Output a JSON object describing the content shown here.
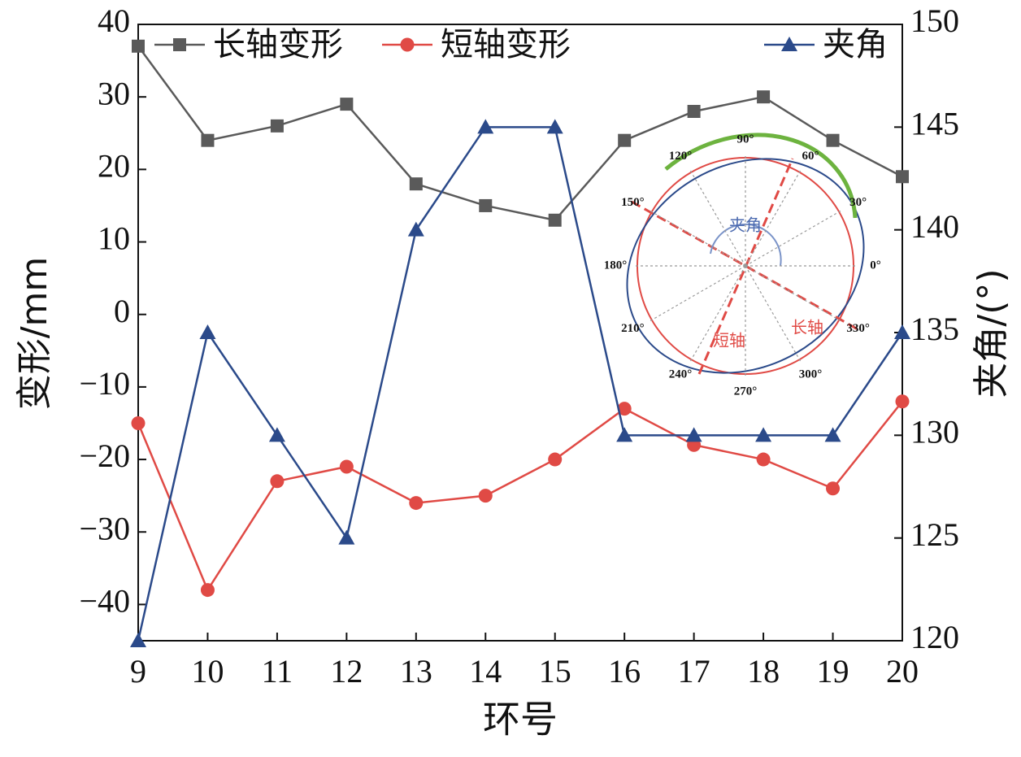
{
  "chart_data": {
    "type": "line",
    "x_label": "环号",
    "y_label": "变形/mm",
    "y2_label": "夹角/(°)",
    "x": [
      9,
      10,
      11,
      12,
      13,
      14,
      15,
      16,
      17,
      18,
      19,
      20
    ],
    "series": [
      {
        "name": "长轴变形",
        "color": "#5a5a5a",
        "marker": "square",
        "values": [
          37,
          24,
          26,
          29,
          18,
          15,
          13,
          24,
          28,
          30,
          24,
          19
        ]
      },
      {
        "name": "短轴变形",
        "color": "#e04a45",
        "marker": "circle",
        "values": [
          -15,
          -38,
          -23,
          -21,
          -26,
          -25,
          -20,
          -13,
          -18,
          -20,
          -24,
          -12
        ]
      },
      {
        "name": "夹角",
        "color": "#2b4a8a",
        "marker": "triangle",
        "axis": "y2",
        "values": [
          120,
          135,
          130,
          125,
          140,
          145,
          145,
          130,
          130,
          130,
          130,
          135
        ]
      }
    ],
    "xlim": [
      9,
      20
    ],
    "xticks": [
      9,
      10,
      11,
      12,
      13,
      14,
      15,
      16,
      17,
      18,
      19,
      20
    ],
    "ylim": [
      -45,
      40
    ],
    "yticks": [
      {
        "value": -40,
        "label": "−40"
      },
      {
        "value": -30,
        "label": "−30"
      },
      {
        "value": -20,
        "label": "−20"
      },
      {
        "value": -10,
        "label": "−10"
      },
      0,
      10,
      20,
      30,
      40
    ],
    "y2lim": [
      120,
      150
    ],
    "y2ticks": [
      120,
      125,
      130,
      135,
      140,
      145,
      150
    ],
    "inset": {
      "angle_labels": [
        "0°",
        "30°",
        "60°",
        "90°",
        "120°",
        "150°",
        "180°",
        "210°",
        "240°",
        "270°",
        "300°",
        "330°"
      ],
      "angle_note": "夹角",
      "short_axis": "短轴",
      "long_axis": "长轴"
    }
  }
}
